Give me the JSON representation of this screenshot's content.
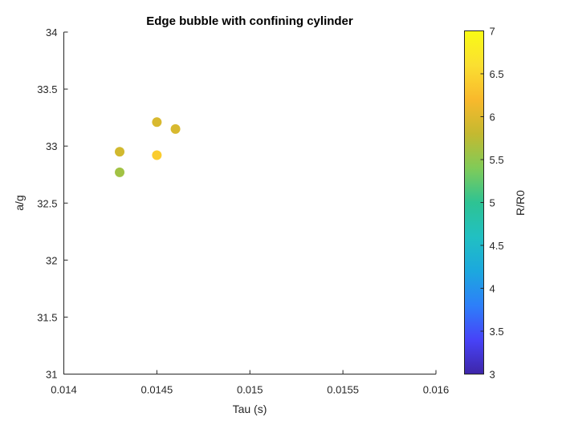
{
  "chart_data": {
    "type": "scatter",
    "title": "Edge bubble with confining cylinder",
    "xlabel": "Tau (s)",
    "ylabel": "a/g",
    "colorbar_label": "R/R0",
    "xlim": [
      0.014,
      0.016
    ],
    "ylim": [
      31,
      34
    ],
    "clim": [
      3,
      7
    ],
    "xticks": [
      "0.014",
      "0.0145",
      "0.015",
      "0.0155",
      "0.016"
    ],
    "yticks": [
      "31",
      "31.5",
      "32",
      "32.5",
      "33",
      "33.5",
      "34"
    ],
    "cticks": [
      "3",
      "3.5",
      "4",
      "4.5",
      "5",
      "5.5",
      "6",
      "6.5",
      "7"
    ],
    "grid": false,
    "colormap": "parula",
    "points": [
      {
        "x": 0.0143,
        "y": 32.95,
        "c": 5.9
      },
      {
        "x": 0.0143,
        "y": 32.77,
        "c": 5.6
      },
      {
        "x": 0.0145,
        "y": 33.21,
        "c": 5.95
      },
      {
        "x": 0.0146,
        "y": 33.15,
        "c": 5.95
      },
      {
        "x": 0.0145,
        "y": 32.92,
        "c": 6.4
      }
    ]
  },
  "colors": {
    "axis": "#262626",
    "background": "#ffffff",
    "colormap_stops": [
      "#3e26a8",
      "#4743f8",
      "#2d7ff9",
      "#1ca8de",
      "#21c0c2",
      "#2ec393",
      "#80cb58",
      "#c4b930",
      "#f9b92c",
      "#fadf31",
      "#f9fb15"
    ]
  }
}
